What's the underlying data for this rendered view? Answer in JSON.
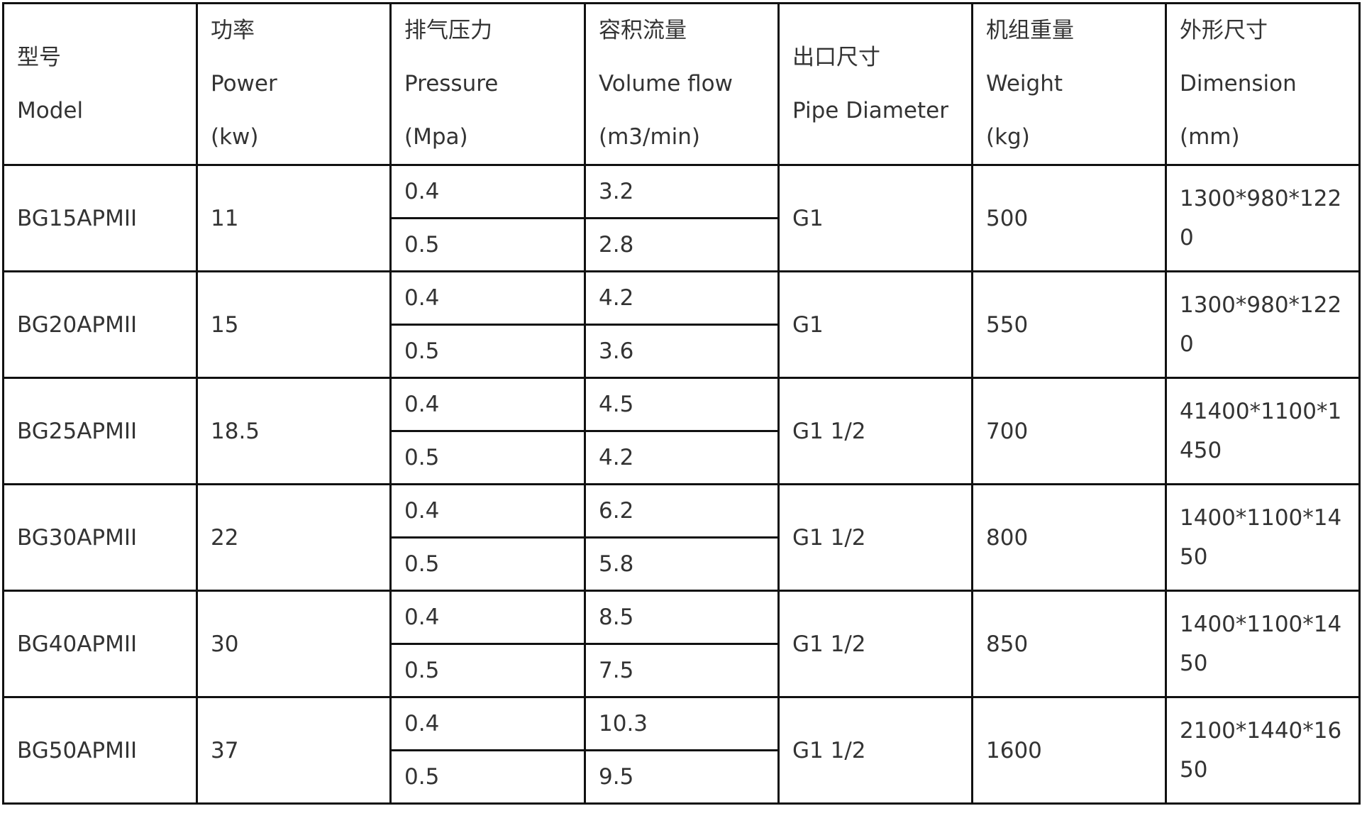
{
  "headers": [
    {
      "zh": "型号",
      "en": "Model"
    },
    {
      "zh": "功率",
      "en": "Power",
      "unit": "(kw)"
    },
    {
      "zh": "排气压力",
      "en": "Pressure",
      "unit": "(Mpa)"
    },
    {
      "zh": "容积流量",
      "en": "Volume flow",
      "unit": "(m3/min)"
    },
    {
      "zh": "出口尺寸",
      "en": "Pipe Diameter"
    },
    {
      "zh": "机组重量",
      "en": "Weight",
      "unit": "(kg)"
    },
    {
      "zh": "外形尺寸",
      "en": "Dimension",
      "unit": "(mm)"
    }
  ],
  "rows": [
    {
      "model": "BG15APMII",
      "power": "11",
      "p1": "0.4",
      "f1": "3.2",
      "p2": "0.5",
      "f2": "2.8",
      "pipe": "G1",
      "weight": "500",
      "dimension": "1300*980*1220"
    },
    {
      "model": "BG20APMII",
      "power": "15",
      "p1": "0.4",
      "f1": "4.2",
      "p2": "0.5",
      "f2": "3.6",
      "pipe": "G1",
      "weight": "550",
      "dimension": "1300*980*1220"
    },
    {
      "model": "BG25APMII",
      "power": "18.5",
      "p1": "0.4",
      "f1": "4.5",
      "p2": "0.5",
      "f2": "4.2",
      "pipe": "G1 1/2",
      "weight": "700",
      "dimension": "41400*1100*1450"
    },
    {
      "model": "BG30APMII",
      "power": "22",
      "p1": "0.4",
      "f1": "6.2",
      "p2": "0.5",
      "f2": "5.8",
      "pipe": "G1 1/2",
      "weight": "800",
      "dimension": "1400*1100*1450"
    },
    {
      "model": "BG40APMII",
      "power": "30",
      "p1": "0.4",
      "f1": "8.5",
      "p2": "0.5",
      "f2": "7.5",
      "pipe": "G1 1/2",
      "weight": "850",
      "dimension": "1400*1100*1450"
    },
    {
      "model": "BG50APMII",
      "power": "37",
      "p1": "0.4",
      "f1": "10.3",
      "p2": "0.5",
      "f2": "9.5",
      "pipe": "G1 1/2",
      "weight": "1600",
      "dimension": "2100*1440*1650"
    }
  ]
}
